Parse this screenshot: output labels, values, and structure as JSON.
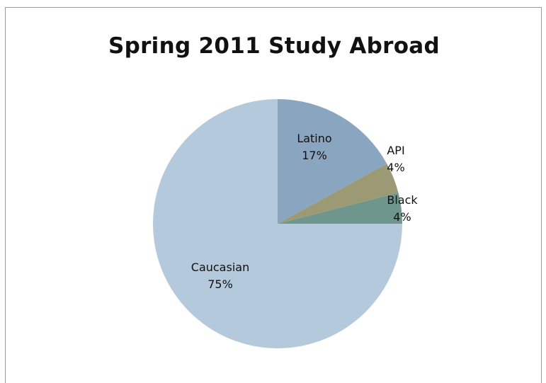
{
  "chart_data": {
    "type": "pie",
    "title": "Spring 2011 Study Abroad",
    "slices": [
      {
        "label": "Latino",
        "value": 17,
        "display": "17%",
        "color": "#8aa5bf"
      },
      {
        "label": "API",
        "value": 4,
        "display": "4%",
        "color": "#9c9a74"
      },
      {
        "label": "Black",
        "value": 4,
        "display": "4%",
        "color": "#6f968c"
      },
      {
        "label": "Caucasian",
        "value": 75,
        "display": "75%",
        "color": "#b5c9dd"
      }
    ],
    "start_angle": "12 o'clock",
    "direction": "clockwise",
    "legend": "none"
  }
}
